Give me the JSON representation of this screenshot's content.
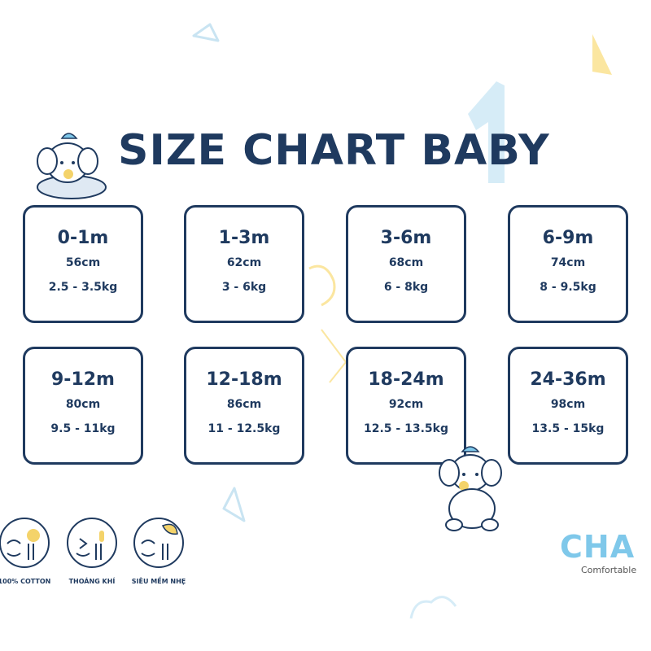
{
  "title": "SIZE CHART BABY",
  "sizes": [
    {
      "age": "0-1m",
      "length": "56cm",
      "weight": "2.5 - 3.5kg"
    },
    {
      "age": "1-3m",
      "length": "62cm",
      "weight": "3 - 6kg"
    },
    {
      "age": "3-6m",
      "length": "68cm",
      "weight": "6 - 8kg"
    },
    {
      "age": "6-9m",
      "length": "74cm",
      "weight": "8 - 9.5kg"
    },
    {
      "age": "9-12m",
      "length": "80cm",
      "weight": "9.5 - 11kg"
    },
    {
      "age": "12-18m",
      "length": "86cm",
      "weight": "11 - 12.5kg"
    },
    {
      "age": "18-24m",
      "length": "92cm",
      "weight": "12.5 - 13.5kg"
    },
    {
      "age": "24-36m",
      "length": "98cm",
      "weight": "13.5 - 15kg"
    }
  ],
  "features": [
    {
      "label": "100% COTTON",
      "icon": "cotton-face-icon"
    },
    {
      "label": "THOÁNG KHÍ",
      "icon": "breathable-face-icon"
    },
    {
      "label": "SIÊU MỀM NHẸ",
      "icon": "soft-face-icon"
    }
  ],
  "brand": {
    "name": "CHA",
    "tagline": "Comfortable"
  },
  "colors": {
    "navy": "#1f3a5f",
    "lightblue": "#7fc8ea",
    "yellow": "#fbe08a"
  }
}
